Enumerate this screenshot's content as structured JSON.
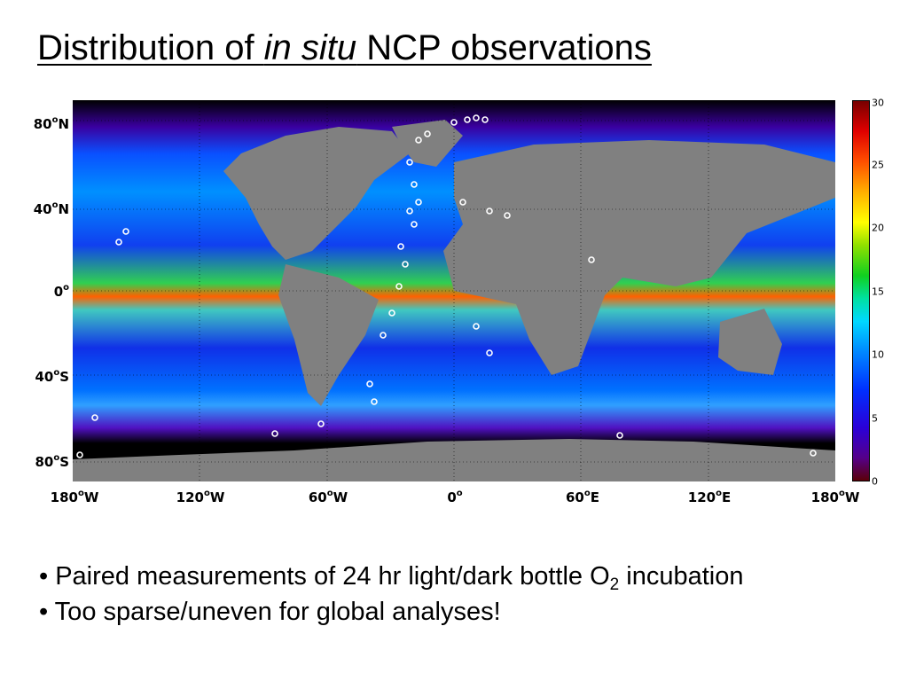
{
  "title": {
    "prefix": "Distribution of ",
    "italic": "in situ",
    "suffix": " NCP observations"
  },
  "map": {
    "y_ticks": [
      {
        "lat": "80",
        "hemi": "N"
      },
      {
        "lat": "40",
        "hemi": "N"
      },
      {
        "lat": "0",
        "hemi": ""
      },
      {
        "lat": "40",
        "hemi": "S"
      },
      {
        "lat": "80",
        "hemi": "S"
      }
    ],
    "x_ticks": [
      {
        "lon": "180",
        "hemi": "W"
      },
      {
        "lon": "120",
        "hemi": "W"
      },
      {
        "lon": "60",
        "hemi": "W"
      },
      {
        "lon": "0",
        "hemi": ""
      },
      {
        "lon": "60",
        "hemi": "E"
      },
      {
        "lon": "120",
        "hemi": "E"
      },
      {
        "lon": "180",
        "hemi": "W"
      }
    ],
    "land_color": "#808080",
    "marker_color": "#ffffff"
  },
  "colorbar": {
    "ticks": [
      "30",
      "25",
      "20",
      "15",
      "10",
      "5",
      "0"
    ],
    "range": [
      0,
      30
    ]
  },
  "bullets": {
    "b1_prefix": "• Paired measurements of 24 hr light/dark bottle O",
    "b1_sub": "2",
    "b1_suffix": " incubation",
    "b2": "• Too sparse/uneven for global analyses!"
  }
}
